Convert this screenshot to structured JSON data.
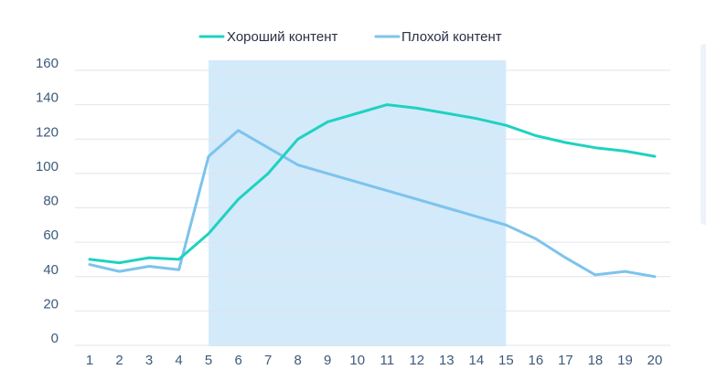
{
  "chart_data": {
    "type": "line",
    "title": "",
    "xlabel": "",
    "ylabel": "",
    "x": [
      1,
      2,
      3,
      4,
      5,
      6,
      7,
      8,
      9,
      10,
      11,
      12,
      13,
      14,
      15,
      16,
      17,
      18,
      19,
      20
    ],
    "x_tick_labels": [
      "1",
      "2",
      "3",
      "4",
      "5",
      "6",
      "7",
      "8",
      "9",
      "10",
      "11",
      "12",
      "13",
      "14",
      "15",
      "16",
      "17",
      "18",
      "19",
      "20"
    ],
    "ylim": [
      0,
      160
    ],
    "y_ticks": [
      0,
      20,
      40,
      60,
      80,
      100,
      120,
      140,
      160
    ],
    "y_tick_labels": [
      "0",
      "20",
      "40",
      "60",
      "80",
      "100",
      "120",
      "140",
      "160"
    ],
    "grid": "horizontal",
    "legend_position": "top-center",
    "highlight_region": {
      "x_start": 5,
      "x_end": 15,
      "color": "#d3eafb"
    },
    "series": [
      {
        "name": "Хороший контент",
        "color": "#1ed2c0",
        "values": [
          50,
          48,
          51,
          50,
          65,
          85,
          100,
          120,
          130,
          135,
          140,
          138,
          135,
          132,
          128,
          122,
          118,
          115,
          113,
          110
        ]
      },
      {
        "name": "Плохой контент",
        "color": "#7dc3ec",
        "values": [
          47,
          43,
          46,
          44,
          110,
          125,
          115,
          105,
          100,
          95,
          90,
          85,
          80,
          75,
          70,
          62,
          51,
          41,
          43,
          40
        ]
      }
    ]
  }
}
